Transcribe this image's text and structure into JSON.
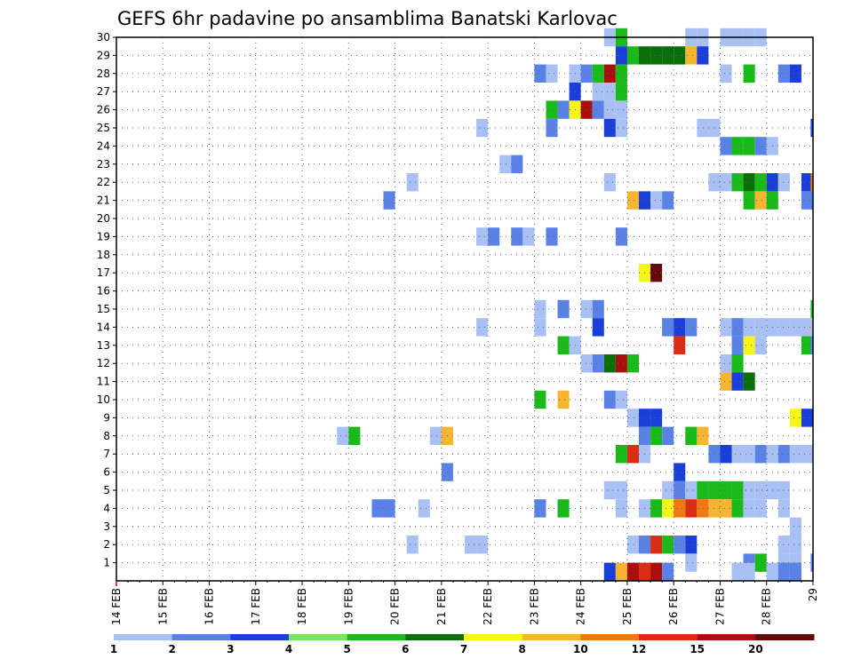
{
  "chart_data": {
    "type": "heatmap",
    "title": "GEFS 6hr padavine po ansamblima Banatski Karlovac",
    "xlabel": "",
    "ylabel": "",
    "y_tick_labels": [
      "1",
      "2",
      "3",
      "4",
      "5",
      "6",
      "7",
      "8",
      "9",
      "10",
      "11",
      "12",
      "13",
      "14",
      "15",
      "16",
      "17",
      "18",
      "19",
      "20",
      "21",
      "22",
      "23",
      "24",
      "25",
      "26",
      "27",
      "28",
      "29",
      "30"
    ],
    "ylim": [
      0,
      30
    ],
    "x_tick_labels": [
      "14 FEB",
      "15 FEB",
      "16 FEB",
      "17 FEB",
      "18 FEB",
      "19 FEB",
      "20 FEB",
      "21 FEB",
      "22 FEB",
      "23 FEB",
      "24 FEB",
      "25 FEB",
      "26 FEB",
      "27 FEB",
      "28 FEB",
      "29"
    ],
    "xlim_days": [
      0,
      15
    ],
    "grid": true,
    "colorbar": {
      "labels": [
        "1",
        "2",
        "3",
        "4",
        "5",
        "6",
        "7",
        "8",
        "10",
        "12",
        "15",
        "20"
      ],
      "colors": [
        "#a9c0f5",
        "#5a82e6",
        "#1a3fd8",
        "#78e65a",
        "#1aba1a",
        "#0a6e0a",
        "#f5f51a",
        "#f5b432",
        "#f07814",
        "#dc2d14",
        "#aa0f0f",
        "#640a0a"
      ]
    },
    "cells_format": "[member, day_offset_from_14_FEB, color_class_1_to_12]",
    "cells": [
      [
        30,
        10.5,
        1
      ],
      [
        30,
        10.75,
        5
      ],
      [
        30,
        12.25,
        1
      ],
      [
        30,
        12.5,
        1
      ],
      [
        30,
        13.0,
        1
      ],
      [
        30,
        13.25,
        1
      ],
      [
        30,
        13.5,
        1
      ],
      [
        30,
        13.75,
        1
      ],
      [
        29,
        10.75,
        3
      ],
      [
        29,
        11.0,
        5
      ],
      [
        29,
        11.25,
        6
      ],
      [
        29,
        11.5,
        6
      ],
      [
        29,
        11.75,
        6
      ],
      [
        29,
        12.0,
        6
      ],
      [
        29,
        12.25,
        8
      ],
      [
        29,
        12.5,
        3
      ],
      [
        28,
        9.0,
        2
      ],
      [
        28,
        9.25,
        1
      ],
      [
        28,
        9.75,
        1
      ],
      [
        28,
        10.0,
        2
      ],
      [
        28,
        10.25,
        5
      ],
      [
        28,
        10.5,
        11
      ],
      [
        28,
        10.75,
        5
      ],
      [
        28,
        13.0,
        1
      ],
      [
        28,
        13.5,
        5
      ],
      [
        28,
        14.25,
        2
      ],
      [
        28,
        14.5,
        3
      ],
      [
        27,
        9.75,
        3
      ],
      [
        27,
        10.25,
        1
      ],
      [
        27,
        10.5,
        1
      ],
      [
        27,
        10.75,
        5
      ],
      [
        26,
        9.25,
        5
      ],
      [
        26,
        9.5,
        2
      ],
      [
        26,
        9.75,
        7
      ],
      [
        26,
        10.0,
        11
      ],
      [
        26,
        10.25,
        2
      ],
      [
        26,
        10.5,
        1
      ],
      [
        26,
        10.75,
        1
      ],
      [
        25,
        7.75,
        1
      ],
      [
        25,
        9.25,
        2
      ],
      [
        25,
        10.5,
        3
      ],
      [
        25,
        10.75,
        1
      ],
      [
        25,
        12.5,
        1
      ],
      [
        25,
        12.75,
        1
      ],
      [
        25,
        14.95,
        3
      ],
      [
        24,
        13.0,
        2
      ],
      [
        24,
        13.25,
        5
      ],
      [
        24,
        13.5,
        5
      ],
      [
        24,
        13.75,
        2
      ],
      [
        24,
        14.0,
        1
      ],
      [
        23,
        8.25,
        1
      ],
      [
        23,
        8.5,
        2
      ],
      [
        22,
        6.25,
        1
      ],
      [
        22,
        10.5,
        1
      ],
      [
        22,
        12.75,
        1
      ],
      [
        22,
        13.0,
        1
      ],
      [
        22,
        13.25,
        5
      ],
      [
        22,
        13.5,
        6
      ],
      [
        22,
        13.75,
        5
      ],
      [
        22,
        14.0,
        3
      ],
      [
        22,
        14.25,
        1
      ],
      [
        22,
        14.75,
        3
      ],
      [
        22,
        14.95,
        9
      ],
      [
        21,
        5.75,
        2
      ],
      [
        21,
        11.0,
        8
      ],
      [
        21,
        11.25,
        3
      ],
      [
        21,
        11.5,
        1
      ],
      [
        21,
        11.75,
        2
      ],
      [
        21,
        13.5,
        5
      ],
      [
        21,
        13.75,
        8
      ],
      [
        21,
        14.0,
        5
      ],
      [
        21,
        14.75,
        2
      ],
      [
        21,
        14.95,
        2
      ],
      [
        19,
        7.75,
        1
      ],
      [
        19,
        8.0,
        2
      ],
      [
        19,
        8.5,
        2
      ],
      [
        19,
        8.75,
        1
      ],
      [
        19,
        9.25,
        2
      ],
      [
        19,
        10.75,
        2
      ],
      [
        17,
        11.25,
        7
      ],
      [
        17,
        11.5,
        12
      ],
      [
        15,
        9.0,
        1
      ],
      [
        15,
        9.5,
        2
      ],
      [
        15,
        10.0,
        1
      ],
      [
        15,
        10.25,
        2
      ],
      [
        15,
        14.95,
        5
      ],
      [
        14,
        7.75,
        1
      ],
      [
        14,
        9.0,
        1
      ],
      [
        14,
        10.25,
        3
      ],
      [
        14,
        11.75,
        2
      ],
      [
        14,
        12.0,
        3
      ],
      [
        14,
        12.25,
        2
      ],
      [
        14,
        13.0,
        1
      ],
      [
        14,
        13.25,
        2
      ],
      [
        14,
        13.5,
        1
      ],
      [
        14,
        13.75,
        1
      ],
      [
        14,
        14.0,
        1
      ],
      [
        14,
        14.25,
        1
      ],
      [
        14,
        14.5,
        1
      ],
      [
        14,
        14.75,
        1
      ],
      [
        13,
        9.5,
        5
      ],
      [
        13,
        9.75,
        1
      ],
      [
        13,
        12.0,
        10
      ],
      [
        13,
        13.25,
        2
      ],
      [
        13,
        13.5,
        7
      ],
      [
        13,
        13.75,
        1
      ],
      [
        13,
        14.75,
        5
      ],
      [
        13,
        14.95,
        2
      ],
      [
        12,
        10.0,
        1
      ],
      [
        12,
        10.25,
        2
      ],
      [
        12,
        10.5,
        6
      ],
      [
        12,
        10.75,
        11
      ],
      [
        12,
        11.0,
        5
      ],
      [
        12,
        13.0,
        1
      ],
      [
        12,
        13.25,
        5
      ],
      [
        11,
        13.0,
        8
      ],
      [
        11,
        13.25,
        3
      ],
      [
        11,
        13.5,
        6
      ],
      [
        10,
        9.0,
        5
      ],
      [
        10,
        9.5,
        8
      ],
      [
        10,
        10.5,
        2
      ],
      [
        10,
        10.75,
        1
      ],
      [
        9,
        11.0,
        1
      ],
      [
        9,
        11.25,
        3
      ],
      [
        9,
        11.5,
        3
      ],
      [
        9,
        14.5,
        7
      ],
      [
        9,
        14.75,
        3
      ],
      [
        8,
        4.75,
        1
      ],
      [
        8,
        5.0,
        5
      ],
      [
        8,
        6.75,
        1
      ],
      [
        8,
        7.0,
        8
      ],
      [
        8,
        11.25,
        2
      ],
      [
        8,
        11.5,
        5
      ],
      [
        8,
        11.75,
        2
      ],
      [
        8,
        12.25,
        5
      ],
      [
        8,
        12.5,
        8
      ],
      [
        7,
        10.75,
        5
      ],
      [
        7,
        11.0,
        10
      ],
      [
        7,
        11.25,
        1
      ],
      [
        7,
        12.75,
        2
      ],
      [
        7,
        13.0,
        3
      ],
      [
        7,
        13.25,
        1
      ],
      [
        7,
        13.5,
        1
      ],
      [
        7,
        13.75,
        2
      ],
      [
        7,
        14.0,
        1
      ],
      [
        7,
        14.25,
        2
      ],
      [
        7,
        14.5,
        1
      ],
      [
        7,
        14.75,
        1
      ],
      [
        6,
        7.0,
        2
      ],
      [
        6,
        12.0,
        3
      ],
      [
        5,
        10.5,
        1
      ],
      [
        5,
        10.75,
        1
      ],
      [
        5,
        11.75,
        1
      ],
      [
        5,
        12.0,
        2
      ],
      [
        5,
        12.25,
        1
      ],
      [
        5,
        12.5,
        5
      ],
      [
        5,
        12.75,
        5
      ],
      [
        5,
        13.0,
        5
      ],
      [
        5,
        13.25,
        5
      ],
      [
        5,
        13.5,
        1
      ],
      [
        5,
        13.75,
        1
      ],
      [
        5,
        14.0,
        1
      ],
      [
        5,
        14.25,
        1
      ],
      [
        4,
        5.5,
        2
      ],
      [
        4,
        5.75,
        2
      ],
      [
        4,
        6.5,
        1
      ],
      [
        4,
        9.0,
        2
      ],
      [
        4,
        9.5,
        5
      ],
      [
        4,
        10.75,
        1
      ],
      [
        4,
        11.25,
        1
      ],
      [
        4,
        11.5,
        5
      ],
      [
        4,
        11.75,
        7
      ],
      [
        4,
        12.0,
        9
      ],
      [
        4,
        12.25,
        10
      ],
      [
        4,
        12.5,
        9
      ],
      [
        4,
        12.75,
        8
      ],
      [
        4,
        13.0,
        8
      ],
      [
        4,
        13.25,
        5
      ],
      [
        4,
        13.5,
        1
      ],
      [
        4,
        13.75,
        1
      ],
      [
        4,
        14.25,
        1
      ],
      [
        3,
        14.5,
        1
      ],
      [
        2,
        6.25,
        1
      ],
      [
        2,
        7.5,
        1
      ],
      [
        2,
        7.75,
        1
      ],
      [
        2,
        11.0,
        1
      ],
      [
        2,
        11.25,
        2
      ],
      [
        2,
        11.5,
        10
      ],
      [
        2,
        11.75,
        5
      ],
      [
        2,
        12.0,
        2
      ],
      [
        2,
        12.25,
        3
      ],
      [
        2,
        14.25,
        1
      ],
      [
        2,
        14.5,
        1
      ],
      [
        1,
        12.25,
        1
      ],
      [
        1,
        13.5,
        2
      ],
      [
        1,
        13.75,
        5
      ],
      [
        1,
        14.25,
        1
      ],
      [
        1,
        14.5,
        1
      ],
      [
        1,
        14.95,
        2
      ],
      [
        0.5,
        10.5,
        3
      ],
      [
        0.5,
        10.75,
        8
      ],
      [
        0.5,
        11.0,
        11
      ],
      [
        0.5,
        11.25,
        10
      ],
      [
        0.5,
        11.5,
        11
      ],
      [
        0.5,
        11.75,
        2
      ],
      [
        0.5,
        13.25,
        1
      ],
      [
        0.5,
        13.5,
        1
      ],
      [
        0.5,
        14.0,
        1
      ],
      [
        0.5,
        14.25,
        2
      ],
      [
        0.5,
        14.5,
        2
      ]
    ]
  }
}
